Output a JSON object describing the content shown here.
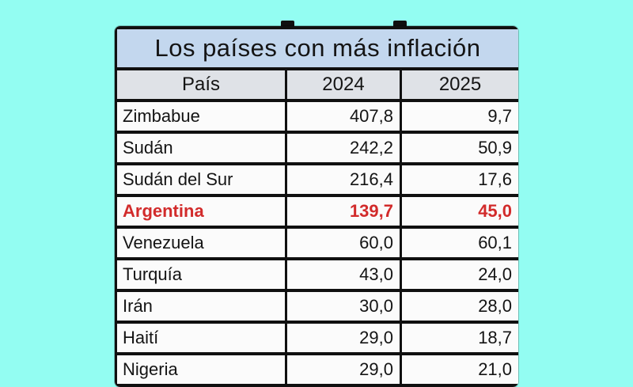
{
  "page": {
    "background_color": "#93fdf2"
  },
  "table": {
    "title": "Los países con más inflación",
    "columns": [
      "País",
      "2024",
      "2025"
    ],
    "rows": [
      {
        "pais": "Zimbabue",
        "y2024": "407,8",
        "y2025": "9,7",
        "highlight": false
      },
      {
        "pais": "Sudán",
        "y2024": "242,2",
        "y2025": "50,9",
        "highlight": false
      },
      {
        "pais": "Sudán del Sur",
        "y2024": "216,4",
        "y2025": "17,6",
        "highlight": false
      },
      {
        "pais": "Argentina",
        "y2024": "139,7",
        "y2025": "45,0",
        "highlight": true
      },
      {
        "pais": "Venezuela",
        "y2024": "60,0",
        "y2025": "60,1",
        "highlight": false
      },
      {
        "pais": "Turquía",
        "y2024": "43,0",
        "y2025": "24,0",
        "highlight": false
      },
      {
        "pais": "Irán",
        "y2024": "30,0",
        "y2025": "28,0",
        "highlight": false
      },
      {
        "pais": "Haití",
        "y2024": "29,0",
        "y2025": "18,7",
        "highlight": false
      },
      {
        "pais": "Nigeria",
        "y2024": "29,0",
        "y2025": "21,0",
        "highlight": false
      }
    ],
    "colors": {
      "background": "#93fdf2",
      "title_bg": "#c3d7ee",
      "header_bg": "#dfe2e7",
      "cell_bg": "#fbfbfb",
      "border": "#101010",
      "text": "#141414",
      "highlight_text": "#d22b2b"
    }
  },
  "chart_data": {
    "type": "table",
    "title": "Los países con más inflación",
    "columns": [
      "País",
      "2024",
      "2025"
    ],
    "rows": [
      [
        "Zimbabue",
        407.8,
        9.7
      ],
      [
        "Sudán",
        242.2,
        50.9
      ],
      [
        "Sudán del Sur",
        216.4,
        17.6
      ],
      [
        "Argentina",
        139.7,
        45.0
      ],
      [
        "Venezuela",
        60.0,
        60.1
      ],
      [
        "Turquía",
        43.0,
        24.0
      ],
      [
        "Irán",
        30.0,
        28.0
      ],
      [
        "Haití",
        29.0,
        18.7
      ],
      [
        "Nigeria",
        29.0,
        21.0
      ]
    ],
    "highlighted_row": "Argentina",
    "number_format": "decimal-comma"
  }
}
